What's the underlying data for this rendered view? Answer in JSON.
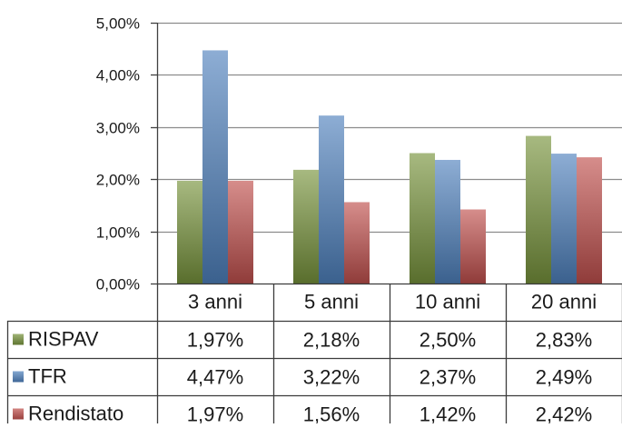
{
  "chart_data": {
    "type": "bar",
    "categories": [
      "3 anni",
      "5 anni",
      "10 anni",
      "20 anni"
    ],
    "series": [
      {
        "name": "RISPAV",
        "values": [
          1.97,
          2.18,
          2.5,
          2.83
        ],
        "labels": [
          "1,97%",
          "2,18%",
          "2,50%",
          "2,83%"
        ],
        "color": "#77933c"
      },
      {
        "name": "TFR",
        "values": [
          4.47,
          3.22,
          2.37,
          2.49
        ],
        "labels": [
          "4,47%",
          "3,22%",
          "2,37%",
          "2,49%"
        ],
        "color": "#4f81bd"
      },
      {
        "name": "Rendistato",
        "values": [
          1.97,
          1.56,
          1.42,
          2.42
        ],
        "labels": [
          "1,97%",
          "1,56%",
          "1,42%",
          "2,42%"
        ],
        "color": "#c0504d"
      }
    ],
    "yticks": [
      "0,00%",
      "1,00%",
      "2,00%",
      "3,00%",
      "4,00%",
      "5,00%"
    ],
    "ylim": [
      0,
      5
    ],
    "grid": true,
    "legend": "data-table-left",
    "title": "",
    "xlabel": "",
    "ylabel": ""
  }
}
